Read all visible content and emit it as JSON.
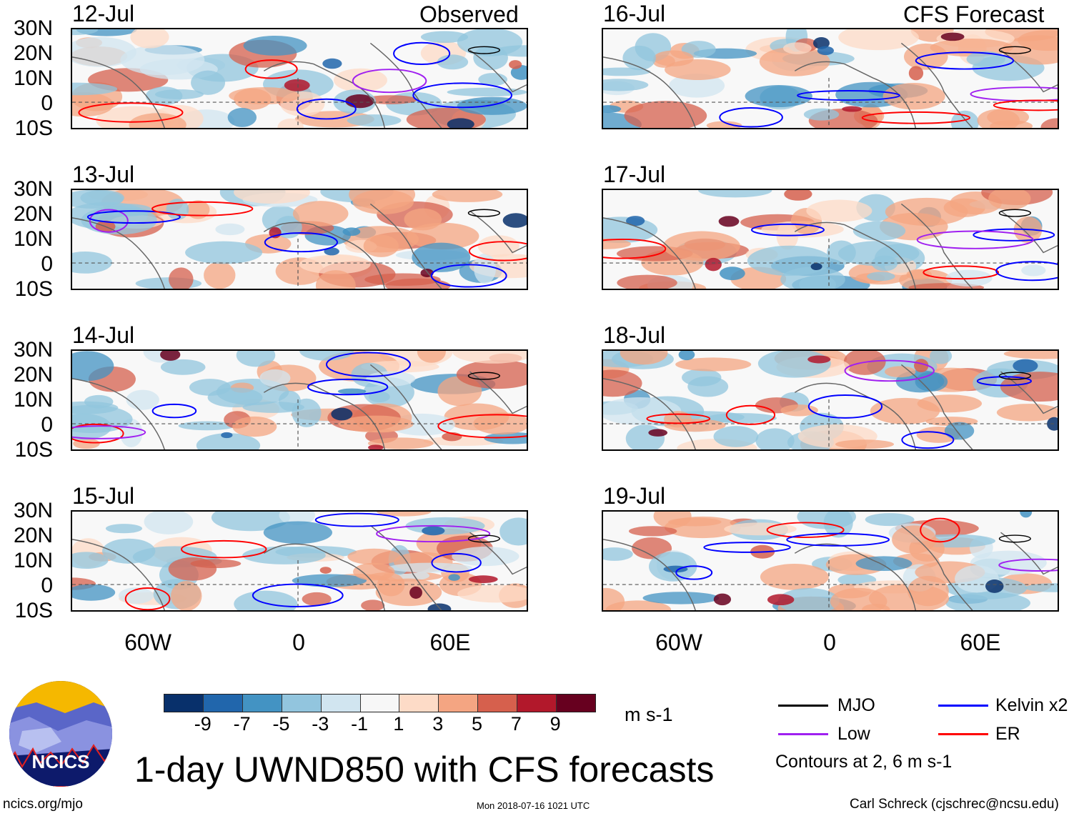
{
  "header": {
    "observed_label": "Observed",
    "forecast_label": "CFS Forecast"
  },
  "observed_panels": [
    {
      "date": "12-Jul"
    },
    {
      "date": "13-Jul"
    },
    {
      "date": "14-Jul"
    },
    {
      "date": "15-Jul"
    }
  ],
  "forecast_panels": [
    {
      "date": "16-Jul"
    },
    {
      "date": "17-Jul"
    },
    {
      "date": "18-Jul"
    },
    {
      "date": "19-Jul"
    }
  ],
  "lat_labels": [
    "30N",
    "20N",
    "10N",
    "0",
    "10S"
  ],
  "lon_labels": [
    "60W",
    "0",
    "60E"
  ],
  "colorbar": {
    "colors": [
      "#08306b",
      "#2166ac",
      "#4393c3",
      "#92c5de",
      "#d1e5f0",
      "#f7f7f7",
      "#fddbc7",
      "#f4a582",
      "#d6604d",
      "#b2182b",
      "#67001f"
    ],
    "labels": [
      "-9",
      "-7",
      "-5",
      "-3",
      "-1",
      "1",
      "3",
      "5",
      "7",
      "9"
    ],
    "units": "m s-1"
  },
  "legend": {
    "items": [
      {
        "label": "MJO",
        "color": "#000000"
      },
      {
        "label": "Kelvin x2",
        "color": "#0000ff"
      },
      {
        "label": "Low",
        "color": "#a020f0"
      },
      {
        "label": "ER",
        "color": "#ff0000"
      }
    ],
    "contours_note": "Contours at 2, 6 m s-1"
  },
  "title": "1-day UWND850 with CFS forecasts",
  "logo": {
    "text": "NCICS"
  },
  "footer": {
    "left": "ncics.org/mjo",
    "center": "Mon 2018-07-16 1021 UTC",
    "right": "Carl Schreck (cjschrec@ncsu.edu)"
  }
}
